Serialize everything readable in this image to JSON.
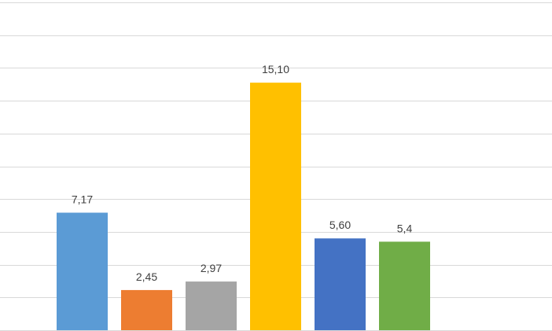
{
  "chart_data": {
    "type": "bar",
    "title": "",
    "xlabel": "",
    "ylabel": "",
    "ylim": [
      0,
      20
    ],
    "grid": true,
    "legend": "none",
    "categories": [
      "",
      "",
      "",
      "",
      "",
      ""
    ],
    "values": [
      7.17,
      2.45,
      2.97,
      15.1,
      5.6,
      5.4
    ],
    "data_labels": [
      "7,17",
      "2,45",
      "2,97",
      "15,10",
      "5,60",
      "5,4"
    ],
    "colors": [
      "#5b9bd5",
      "#ed7d31",
      "#a5a5a5",
      "#ffc000",
      "#4472c4",
      "#70ad47"
    ]
  }
}
